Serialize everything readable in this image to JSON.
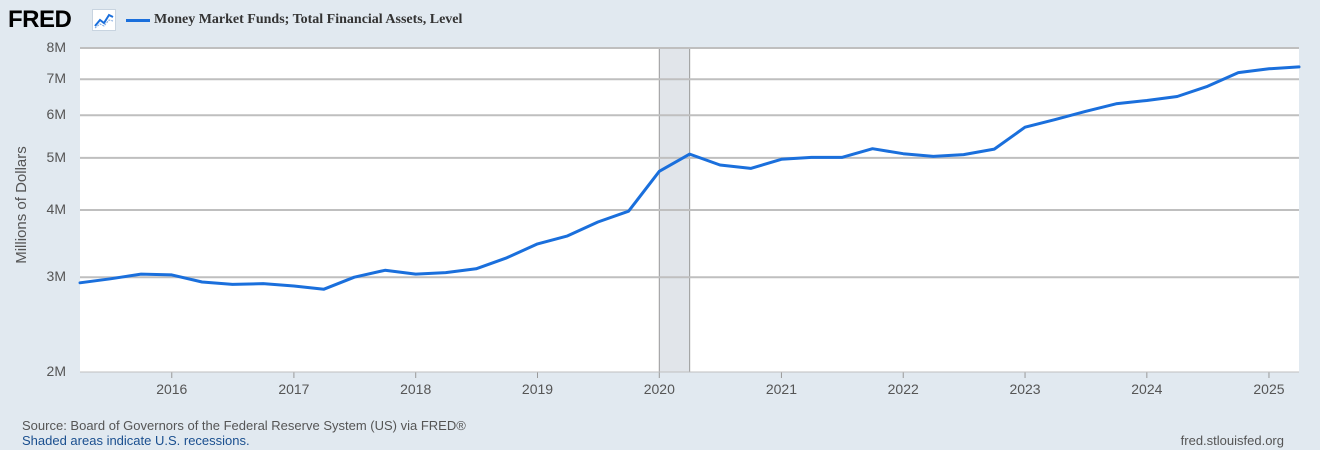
{
  "header": {
    "logo_text": "FRED",
    "logo_icon": "line-chart-icon",
    "legend_label": "Money Market Funds; Total Financial Assets, Level",
    "legend_color": "#1a6fdc"
  },
  "footer": {
    "source": "Source: Board of Governors of the Federal Reserve System (US) via FRED®",
    "note": "Shaded areas indicate U.S. recessions.",
    "url": "fred.stlouisfed.org"
  },
  "chart_data": {
    "type": "line",
    "title": "Money Market Funds; Total Financial Assets, Level",
    "ylabel": "Millions of Dollars",
    "yscale": "log",
    "ylim": [
      2000000,
      8000000
    ],
    "yticks": [
      2000000,
      3000000,
      4000000,
      5000000,
      6000000,
      7000000,
      8000000
    ],
    "ytick_labels": [
      "2M",
      "3M",
      "4M",
      "5M",
      "6M",
      "7M",
      "8M"
    ],
    "xlim": [
      "2015-04-01",
      "2025-04-01"
    ],
    "xticks": [
      "2016-01-01",
      "2017-01-01",
      "2018-01-01",
      "2019-01-01",
      "2020-01-01",
      "2021-01-01",
      "2022-01-01",
      "2023-01-01",
      "2024-01-01",
      "2025-01-01"
    ],
    "xtick_labels": [
      "2016",
      "2017",
      "2018",
      "2019",
      "2020",
      "2021",
      "2022",
      "2023",
      "2024",
      "2025"
    ],
    "grid": true,
    "recessions": [
      [
        "2020-01-01",
        "2020-04-01"
      ]
    ],
    "series_color": "#1a6fdc",
    "x": [
      "2015-04-01",
      "2015-07-01",
      "2015-10-01",
      "2016-01-01",
      "2016-04-01",
      "2016-07-01",
      "2016-10-01",
      "2017-01-01",
      "2017-04-01",
      "2017-07-01",
      "2017-10-01",
      "2018-01-01",
      "2018-04-01",
      "2018-07-01",
      "2018-10-01",
      "2019-01-01",
      "2019-04-01",
      "2019-07-01",
      "2019-10-01",
      "2020-01-01",
      "2020-04-01",
      "2020-07-01",
      "2020-10-01",
      "2021-01-01",
      "2021-04-01",
      "2021-07-01",
      "2021-10-01",
      "2022-01-01",
      "2022-04-01",
      "2022-07-01",
      "2022-10-01",
      "2023-01-01",
      "2023-04-01",
      "2023-07-01",
      "2023-10-01",
      "2024-01-01",
      "2024-04-01",
      "2024-07-01",
      "2024-10-01",
      "2025-01-01",
      "2025-04-01"
    ],
    "series": [
      {
        "name": "Money Market Funds; Total Financial Assets, Level",
        "values": [
          2930000,
          2980000,
          3040000,
          3030000,
          2940000,
          2910000,
          2920000,
          2890000,
          2850000,
          3000000,
          3090000,
          3040000,
          3060000,
          3110000,
          3260000,
          3460000,
          3580000,
          3800000,
          3980000,
          4720000,
          5080000,
          4850000,
          4780000,
          4970000,
          5010000,
          5010000,
          5200000,
          5090000,
          5030000,
          5070000,
          5190000,
          5700000,
          5890000,
          6100000,
          6300000,
          6390000,
          6500000,
          6790000,
          7200000,
          7320000,
          7380000
        ]
      }
    ]
  }
}
